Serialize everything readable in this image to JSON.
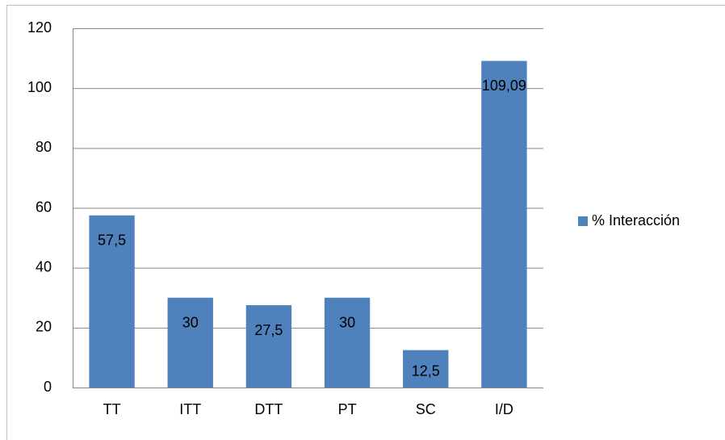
{
  "chart_data": {
    "type": "bar",
    "categories": [
      "TT",
      "ITT",
      "DTT",
      "PT",
      "SC",
      "I/D"
    ],
    "series": [
      {
        "name": "% Interacción",
        "color": "#4f81bd",
        "values": [
          57.5,
          30,
          27.5,
          30,
          12.5,
          109.09
        ],
        "value_labels": [
          "57,5",
          "30",
          "27,5",
          "30",
          "12,5",
          "109,09"
        ]
      }
    ],
    "ylim": [
      0,
      120
    ],
    "yticks": [
      0,
      20,
      40,
      60,
      80,
      100,
      120
    ],
    "grid": true,
    "legend": "right"
  }
}
